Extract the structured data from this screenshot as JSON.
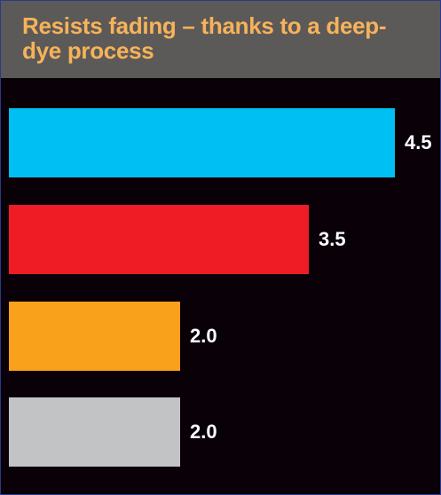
{
  "chart_data": {
    "type": "bar",
    "orientation": "horizontal",
    "title": "Resists fading – thanks to a deep-dye process",
    "categories": [
      "",
      "",
      "",
      ""
    ],
    "values": [
      4.5,
      3.5,
      2.0,
      2.0
    ],
    "data_labels": [
      "4.5",
      "3.5",
      "2.0",
      "2.0"
    ],
    "bar_colors": [
      "#00bff3",
      "#ef1c25",
      "#f9a11b",
      "#c2c3c5"
    ],
    "xlim": [
      0,
      4.5
    ],
    "grid": false,
    "legend": "none"
  },
  "colors": {
    "background": "#0a0008",
    "title_bar": "#5c5a58",
    "title_text": "#f7b25a",
    "label_text": "#ffffff"
  }
}
